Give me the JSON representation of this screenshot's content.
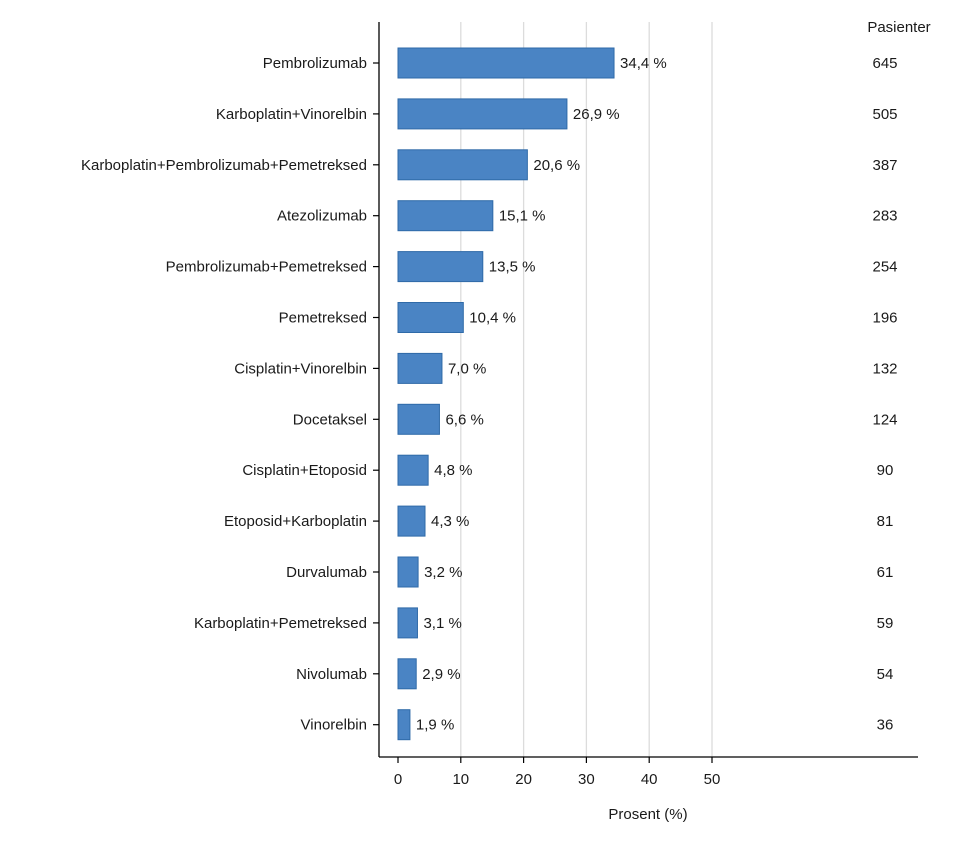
{
  "chart_data": {
    "type": "bar",
    "orientation": "horizontal",
    "categories": [
      "Pembrolizumab",
      "Karboplatin+Vinorelbin",
      "Karboplatin+Pembrolizumab+Pemetreksed",
      "Atezolizumab",
      "Pembrolizumab+Pemetreksed",
      "Pemetreksed",
      "Cisplatin+Vinorelbin",
      "Docetaksel",
      "Cisplatin+Etoposid",
      "Etoposid+Karboplatin",
      "Durvalumab",
      "Karboplatin+Pemetreksed",
      "Nivolumab",
      "Vinorelbin"
    ],
    "values": [
      34.4,
      26.9,
      20.6,
      15.1,
      13.5,
      10.4,
      7.0,
      6.6,
      4.8,
      4.3,
      3.2,
      3.1,
      2.9,
      1.9
    ],
    "value_labels": [
      "34,4 %",
      "26,9 %",
      "20,6 %",
      "15,1 %",
      "13,5 %",
      "10,4 %",
      "7,0 %",
      "6,6 %",
      "4,8 %",
      "4,3 %",
      "3,2 %",
      "3,1 %",
      "2,9 %",
      "1,9 %"
    ],
    "patients_header": "Pasienter",
    "patients": [
      "645",
      "505",
      "387",
      "283",
      "254",
      "196",
      "132",
      "124",
      "90",
      "81",
      "61",
      "59",
      "54",
      "36"
    ],
    "xlabel": "Prosent (%)",
    "ylabel": "",
    "xlim": [
      0,
      50
    ],
    "x_ticks": [
      "0",
      "10",
      "20",
      "30",
      "40",
      "50"
    ],
    "grid": "vertical",
    "bar_color": "#4a84c4",
    "bar_edge_color": "#2f6aa8"
  }
}
